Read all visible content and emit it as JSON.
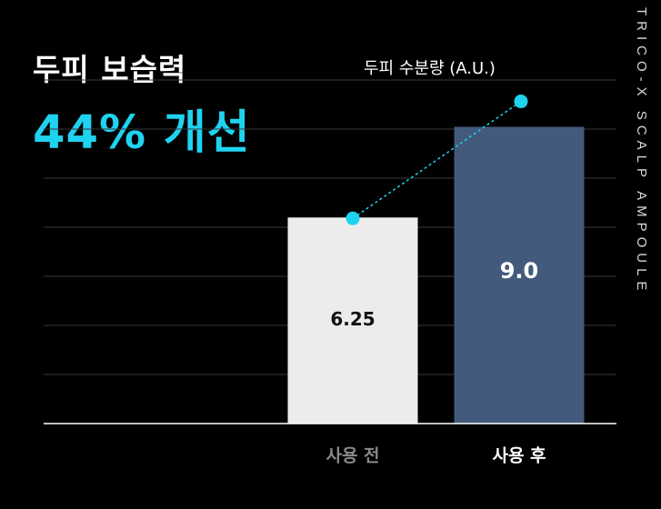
{
  "headline": {
    "title": "두피 보습력",
    "highlight": "44% 개선"
  },
  "side_text": "TRICO-X SCALP AMPOULE",
  "colors": {
    "accent": "#1fd3f0",
    "before_bar": "#ececec",
    "after_bar": "#435a7c",
    "background": "#000000"
  },
  "chart_data": {
    "type": "bar",
    "title": "",
    "legend": "두피 수분량 (A.U.)",
    "categories": [
      "사용 전",
      "사용 후"
    ],
    "values": [
      6.25,
      9.0
    ],
    "value_labels": [
      "6.25",
      "9.0"
    ],
    "ylim": [
      0,
      10.2
    ],
    "grid": true,
    "trend_line": true
  }
}
